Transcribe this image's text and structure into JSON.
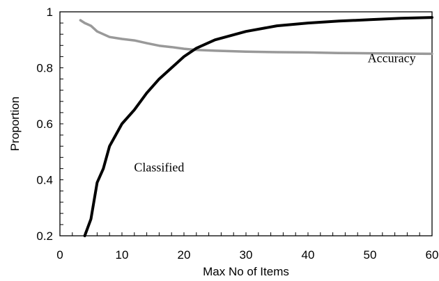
{
  "chart_data": {
    "type": "line",
    "xlabel": "Max No of Items",
    "ylabel": "Proportion",
    "xlim": [
      0,
      60
    ],
    "ylim": [
      0.2,
      1
    ],
    "x_ticks": [
      "0",
      "10",
      "20",
      "30",
      "40",
      "50",
      "60"
    ],
    "y_ticks": [
      "0.2",
      "0.4",
      "0.6",
      "0.8",
      "1"
    ],
    "minor_tick_step_x": 2,
    "minor_tick_step_y": 0.04,
    "grid": false,
    "legend": "none",
    "series": [
      {
        "name": "Accuracy",
        "color": "#999999",
        "x": [
          3.3,
          4,
          5,
          6,
          7,
          8,
          10,
          12,
          14,
          16,
          18,
          20,
          22,
          25,
          30,
          35,
          40,
          45,
          50,
          55,
          60
        ],
        "y": [
          0.97,
          0.96,
          0.95,
          0.93,
          0.92,
          0.91,
          0.903,
          0.898,
          0.888,
          0.879,
          0.874,
          0.868,
          0.864,
          0.861,
          0.858,
          0.856,
          0.855,
          0.853,
          0.852,
          0.851,
          0.85
        ]
      },
      {
        "name": "Classified",
        "color": "#000000",
        "x": [
          4,
          5,
          6,
          7,
          8,
          9,
          10,
          12,
          14,
          16,
          18,
          20,
          22,
          25,
          30,
          35,
          40,
          45,
          50,
          55,
          60
        ],
        "y": [
          0.2,
          0.26,
          0.39,
          0.44,
          0.52,
          0.56,
          0.6,
          0.65,
          0.71,
          0.76,
          0.8,
          0.84,
          0.87,
          0.9,
          0.93,
          0.95,
          0.96,
          0.967,
          0.972,
          0.977,
          0.98
        ]
      }
    ],
    "annotations": [
      {
        "text": "Accuracy",
        "x": 53.5,
        "y": 0.82
      },
      {
        "text": "Classified",
        "x": 16,
        "y": 0.43
      }
    ]
  }
}
